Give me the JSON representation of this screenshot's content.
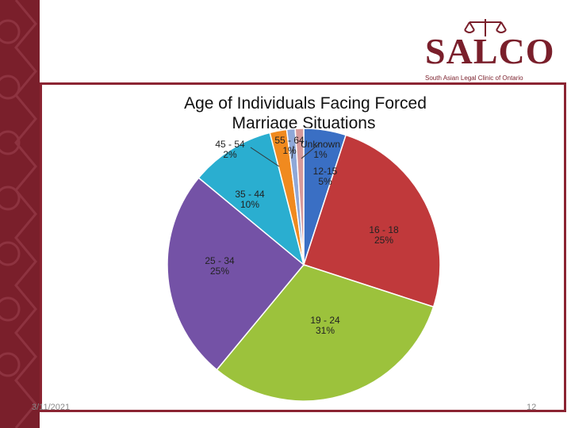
{
  "logo": {
    "word": "SALCO",
    "subtitle": "South Asian Legal Clinic of Ontario",
    "icon": "scales-of-justice-icon",
    "color": "#7a1f2b"
  },
  "footer": {
    "date": "3/11/2021",
    "page": "12"
  },
  "chart_data": {
    "type": "pie",
    "title": [
      "Age of Individuals Facing Forced",
      "Marriage Situations"
    ],
    "legend": "none",
    "slices": [
      {
        "label": "12-15",
        "value": 5,
        "display": "5%",
        "color": "#3a6fc4"
      },
      {
        "label": "16 - 18",
        "value": 25,
        "display": "25%",
        "color": "#c0393b"
      },
      {
        "label": "19 - 24",
        "value": 31,
        "display": "31%",
        "color": "#9cc23c"
      },
      {
        "label": "25 - 34",
        "value": 25,
        "display": "25%",
        "color": "#7452a6"
      },
      {
        "label": "35 - 44",
        "value": 10,
        "display": "10%",
        "color": "#2aaed0"
      },
      {
        "label": "45 - 54",
        "value": 2,
        "display": "2%",
        "color": "#f08a1f"
      },
      {
        "label": "55 - 64",
        "value": 1,
        "display": "1%",
        "color": "#8fa8d8"
      },
      {
        "label": "Unknown",
        "value": 1,
        "display": "1%",
        "color": "#d79a9a"
      }
    ]
  }
}
